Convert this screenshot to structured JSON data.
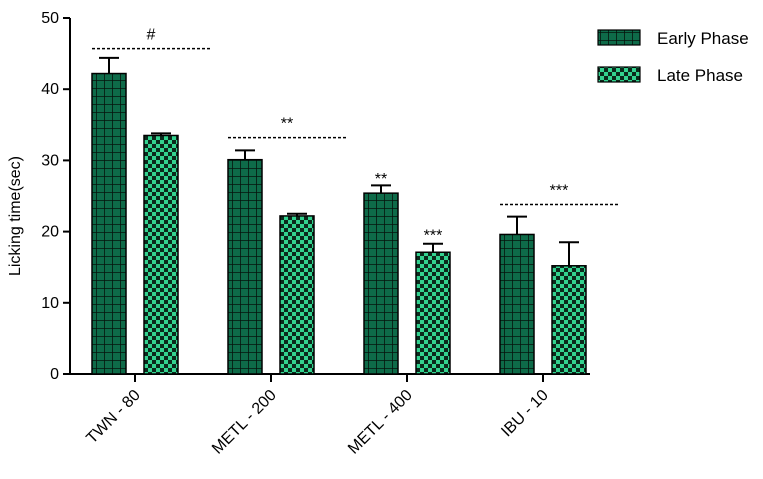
{
  "chart_data": {
    "type": "bar",
    "title": "",
    "xlabel": "",
    "ylabel": "Licking time(sec)",
    "ylim": [
      0,
      50
    ],
    "yticks": [
      0,
      10,
      20,
      30,
      40,
      50
    ],
    "categories": [
      "TWN - 80",
      "METL - 200",
      "METL - 400",
      "IBU - 10"
    ],
    "series": [
      {
        "name": "Early Phase",
        "values": [
          42.2,
          30.1,
          25.4,
          19.6
        ],
        "errors": [
          2.2,
          1.3,
          1.1,
          2.5
        ],
        "color": "#0e6b49",
        "pattern": "grid"
      },
      {
        "name": "Late Phase",
        "values": [
          33.5,
          22.2,
          17.1,
          15.2
        ],
        "errors": [
          0.3,
          0.3,
          1.2,
          3.3
        ],
        "color": "#33d28f",
        "pattern": "checker"
      }
    ],
    "annotations": [
      {
        "category": 0,
        "text": "#",
        "type": "bracket",
        "value": 45.7
      },
      {
        "category": 1,
        "text": "**",
        "type": "bracket",
        "value": 33.2
      },
      {
        "category": 2,
        "series": 0,
        "text": "**",
        "type": "label",
        "value": 27.0
      },
      {
        "category": 2,
        "series": 1,
        "text": "***",
        "type": "label",
        "value": 19.0
      },
      {
        "category": 3,
        "text": "***",
        "type": "bracket",
        "value": 23.8
      }
    ],
    "legend_position": "top-right",
    "grid": false
  }
}
